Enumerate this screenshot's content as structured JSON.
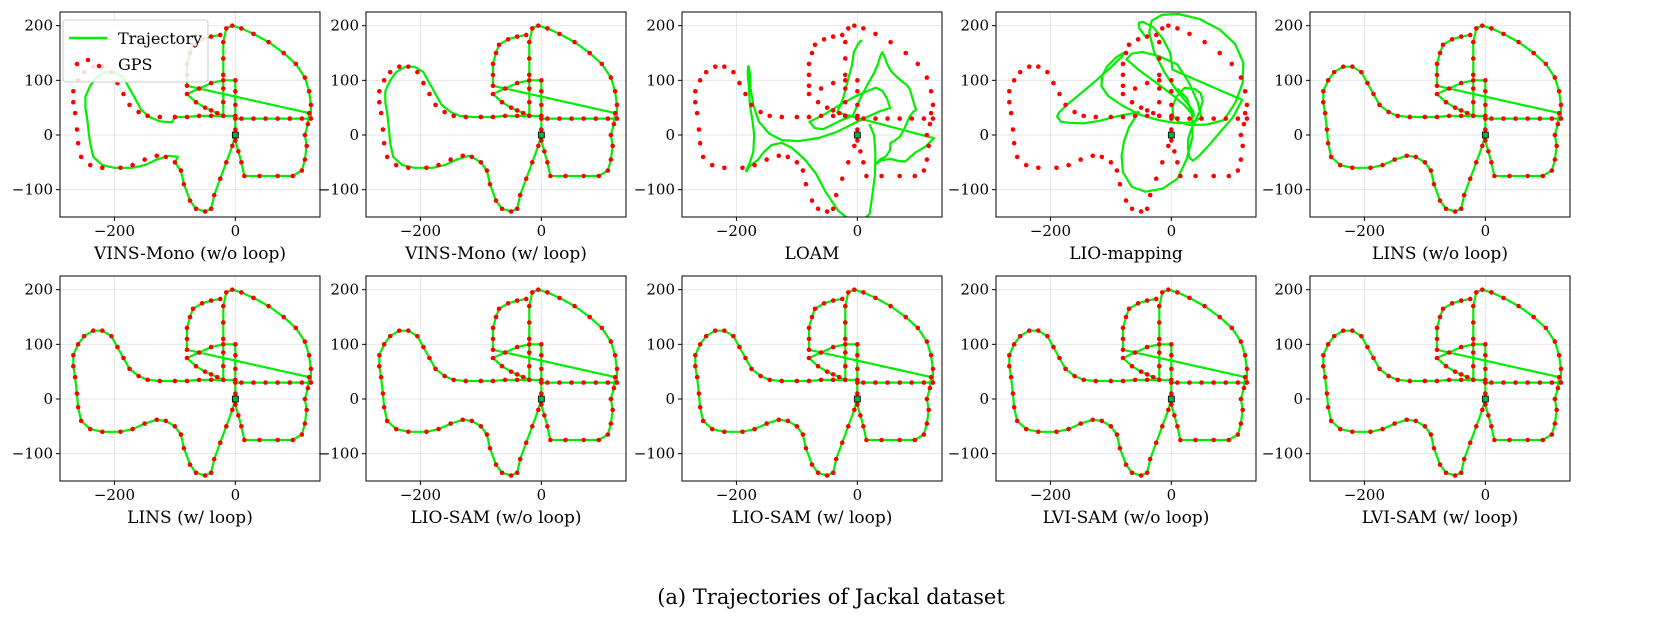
{
  "caption": "(a) Trajectories of Jackal dataset",
  "colors": {
    "trajectory": "#00ee00",
    "gps": "#ff0000",
    "grid": "#e6e6e6",
    "axes": "#000000",
    "origin_marker": "#11aa44"
  },
  "legend": {
    "trajectory_label": "Trajectory",
    "gps_label": "GPS",
    "location": "upper-left"
  },
  "chart_data": [
    {
      "type": "line",
      "title": "VINS-Mono (w/o loop)",
      "xlim": [
        -290,
        140
      ],
      "ylim": [
        -150,
        225
      ],
      "xticks": [
        -200,
        0
      ],
      "yticks": [
        -100,
        0,
        100,
        200
      ],
      "grid": true,
      "legend": true,
      "series": [
        {
          "name": "Trajectory",
          "kind": "line",
          "variant": "drift1"
        },
        {
          "name": "GPS",
          "kind": "scatter"
        }
      ]
    },
    {
      "type": "line",
      "title": "VINS-Mono (w/ loop)",
      "xlim": [
        -290,
        140
      ],
      "ylim": [
        -150,
        225
      ],
      "xticks": [
        -200,
        0
      ],
      "yticks": [
        -100,
        0,
        100,
        200
      ],
      "grid": true,
      "legend": false,
      "series": [
        {
          "name": "Trajectory",
          "kind": "line",
          "variant": "drift2"
        },
        {
          "name": "GPS",
          "kind": "scatter"
        }
      ]
    },
    {
      "type": "line",
      "title": "LOAM",
      "xlim": [
        -290,
        140
      ],
      "ylim": [
        -150,
        225
      ],
      "xticks": [
        -200,
        0
      ],
      "yticks": [
        -100,
        0,
        100,
        200
      ],
      "grid": true,
      "legend": false,
      "series": [
        {
          "name": "Trajectory",
          "kind": "line",
          "variant": "loam"
        },
        {
          "name": "GPS",
          "kind": "scatter"
        }
      ]
    },
    {
      "type": "line",
      "title": "LIO-mapping",
      "xlim": [
        -290,
        140
      ],
      "ylim": [
        -150,
        225
      ],
      "xticks": [
        -200,
        0
      ],
      "yticks": [
        -100,
        0,
        100,
        200
      ],
      "grid": true,
      "legend": false,
      "series": [
        {
          "name": "Trajectory",
          "kind": "line",
          "variant": "liomap"
        },
        {
          "name": "GPS",
          "kind": "scatter"
        }
      ]
    },
    {
      "type": "line",
      "title": "LINS (w/o loop)",
      "xlim": [
        -290,
        140
      ],
      "ylim": [
        -150,
        225
      ],
      "xticks": [
        -200,
        0
      ],
      "yticks": [
        -100,
        0,
        100,
        200
      ],
      "grid": true,
      "legend": false,
      "series": [
        {
          "name": "Trajectory",
          "kind": "line",
          "variant": "good"
        },
        {
          "name": "GPS",
          "kind": "scatter"
        }
      ]
    },
    {
      "type": "line",
      "title": "LINS (w/ loop)",
      "xlim": [
        -290,
        140
      ],
      "ylim": [
        -150,
        225
      ],
      "xticks": [
        -200,
        0
      ],
      "yticks": [
        -100,
        0,
        100,
        200
      ],
      "grid": true,
      "legend": false,
      "series": [
        {
          "name": "Trajectory",
          "kind": "line",
          "variant": "good"
        },
        {
          "name": "GPS",
          "kind": "scatter"
        }
      ]
    },
    {
      "type": "line",
      "title": "LIO-SAM (w/o loop)",
      "xlim": [
        -290,
        140
      ],
      "ylim": [
        -150,
        225
      ],
      "xticks": [
        -200,
        0
      ],
      "yticks": [
        -100,
        0,
        100,
        200
      ],
      "grid": true,
      "legend": false,
      "series": [
        {
          "name": "Trajectory",
          "kind": "line",
          "variant": "good"
        },
        {
          "name": "GPS",
          "kind": "scatter"
        }
      ]
    },
    {
      "type": "line",
      "title": "LIO-SAM (w/ loop)",
      "xlim": [
        -290,
        140
      ],
      "ylim": [
        -150,
        225
      ],
      "xticks": [
        -200,
        0
      ],
      "yticks": [
        -100,
        0,
        100,
        200
      ],
      "grid": true,
      "legend": false,
      "series": [
        {
          "name": "Trajectory",
          "kind": "line",
          "variant": "good"
        },
        {
          "name": "GPS",
          "kind": "scatter"
        }
      ]
    },
    {
      "type": "line",
      "title": "LVI-SAM (w/o loop)",
      "xlim": [
        -290,
        140
      ],
      "ylim": [
        -150,
        225
      ],
      "xticks": [
        -200,
        0
      ],
      "yticks": [
        -100,
        0,
        100,
        200
      ],
      "grid": true,
      "legend": false,
      "series": [
        {
          "name": "Trajectory",
          "kind": "line",
          "variant": "good"
        },
        {
          "name": "GPS",
          "kind": "scatter"
        }
      ]
    },
    {
      "type": "line",
      "title": "LVI-SAM (w/ loop)",
      "xlim": [
        -290,
        140
      ],
      "ylim": [
        -150,
        225
      ],
      "xticks": [
        -200,
        0
      ],
      "yticks": [
        -100,
        0,
        100,
        200
      ],
      "grid": true,
      "legend": false,
      "series": [
        {
          "name": "Trajectory",
          "kind": "line",
          "variant": "good"
        },
        {
          "name": "GPS",
          "kind": "scatter"
        }
      ]
    }
  ],
  "gps_path": [
    [
      0,
      0
    ],
    [
      -5,
      -20
    ],
    [
      -15,
      -50
    ],
    [
      -25,
      -80
    ],
    [
      -35,
      -110
    ],
    [
      -40,
      -135
    ],
    [
      -50,
      -140
    ],
    [
      -65,
      -135
    ],
    [
      -75,
      -120
    ],
    [
      -85,
      -90
    ],
    [
      -90,
      -65
    ],
    [
      -100,
      -50
    ],
    [
      -115,
      -40
    ],
    [
      -130,
      -38
    ],
    [
      -150,
      -45
    ],
    [
      -170,
      -55
    ],
    [
      -190,
      -60
    ],
    [
      -220,
      -60
    ],
    [
      -240,
      -55
    ],
    [
      -255,
      -40
    ],
    [
      -260,
      -15
    ],
    [
      -262,
      10
    ],
    [
      -265,
      40
    ],
    [
      -268,
      60
    ],
    [
      -268,
      80
    ],
    [
      -260,
      100
    ],
    [
      -250,
      115
    ],
    [
      -235,
      125
    ],
    [
      -220,
      125
    ],
    [
      -205,
      115
    ],
    [
      -195,
      95
    ],
    [
      -185,
      75
    ],
    [
      -175,
      55
    ],
    [
      -160,
      42
    ],
    [
      -145,
      35
    ],
    [
      -125,
      33
    ],
    [
      -100,
      33
    ],
    [
      -80,
      33
    ],
    [
      -60,
      35
    ],
    [
      -40,
      35
    ],
    [
      -20,
      35
    ],
    [
      0,
      35
    ],
    [
      0,
      55
    ],
    [
      0,
      80
    ],
    [
      0,
      100
    ],
    [
      -20,
      100
    ],
    [
      -40,
      95
    ],
    [
      -60,
      85
    ],
    [
      -80,
      75
    ],
    [
      -65,
      60
    ],
    [
      -50,
      50
    ],
    [
      -40,
      45
    ],
    [
      -30,
      40
    ],
    [
      -20,
      35
    ],
    [
      -20,
      60
    ],
    [
      -20,
      85
    ],
    [
      -20,
      110
    ],
    [
      -20,
      140
    ],
    [
      -20,
      170
    ],
    [
      -15,
      195
    ],
    [
      -5,
      200
    ],
    [
      10,
      195
    ],
    [
      30,
      185
    ],
    [
      55,
      170
    ],
    [
      80,
      150
    ],
    [
      100,
      130
    ],
    [
      115,
      105
    ],
    [
      122,
      80
    ],
    [
      125,
      55
    ],
    [
      125,
      30
    ],
    [
      110,
      30
    ],
    [
      90,
      30
    ],
    [
      70,
      30
    ],
    [
      50,
      30
    ],
    [
      30,
      30
    ],
    [
      10,
      30
    ],
    [
      0,
      30
    ],
    [
      0,
      10
    ],
    [
      0,
      -10
    ],
    [
      5,
      -30
    ],
    [
      10,
      -50
    ],
    [
      15,
      -75
    ],
    [
      40,
      -75
    ],
    [
      70,
      -75
    ],
    [
      95,
      -75
    ],
    [
      110,
      -65
    ],
    [
      115,
      -45
    ],
    [
      118,
      -20
    ],
    [
      115,
      0
    ],
    [
      120,
      20
    ],
    [
      122,
      40
    ],
    [
      -80,
      90
    ],
    [
      -80,
      110
    ],
    [
      -80,
      130
    ],
    [
      -75,
      150
    ],
    [
      -70,
      165
    ],
    [
      -55,
      175
    ],
    [
      -40,
      180
    ],
    [
      -25,
      183
    ]
  ],
  "origin_marker": {
    "x": 0,
    "y": 0
  }
}
